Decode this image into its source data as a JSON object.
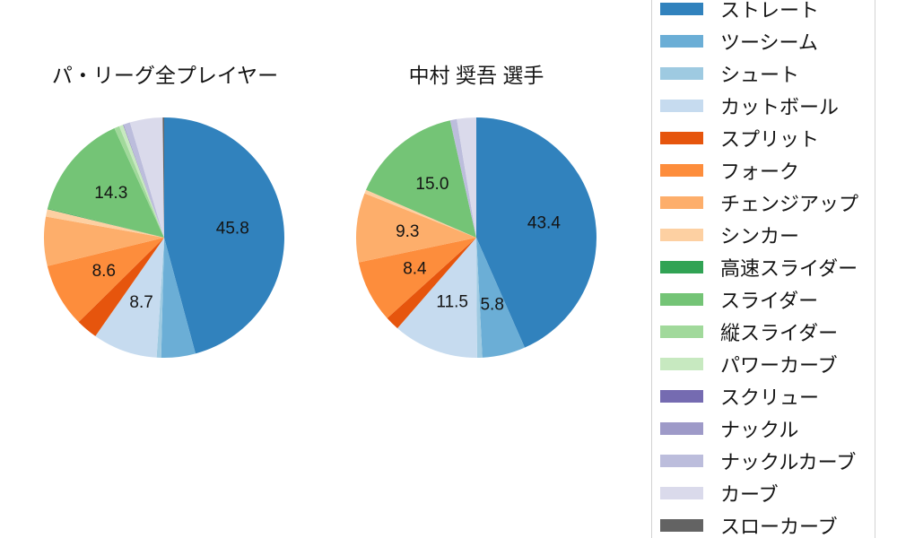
{
  "page": {
    "background_color": "#ffffff",
    "legend_border_color": "#d2d2d2",
    "text_color": "#141414"
  },
  "legend": {
    "items": [
      {
        "label": "ストレート",
        "color": "#3182bd"
      },
      {
        "label": "ツーシーム",
        "color": "#6baed6"
      },
      {
        "label": "シュート",
        "color": "#9ecae1"
      },
      {
        "label": "カットボール",
        "color": "#c6dbef"
      },
      {
        "label": "スプリット",
        "color": "#e6550d"
      },
      {
        "label": "フォーク",
        "color": "#fd8d3c"
      },
      {
        "label": "チェンジアップ",
        "color": "#fdae6b"
      },
      {
        "label": "シンカー",
        "color": "#fdd0a2"
      },
      {
        "label": "高速スライダー",
        "color": "#31a354"
      },
      {
        "label": "スライダー",
        "color": "#74c476"
      },
      {
        "label": "縦スライダー",
        "color": "#a1d99b"
      },
      {
        "label": "パワーカーブ",
        "color": "#c7e9c0"
      },
      {
        "label": "スクリュー",
        "color": "#756bb1"
      },
      {
        "label": "ナックル",
        "color": "#9e9ac8"
      },
      {
        "label": "ナックルカーブ",
        "color": "#bcbddc"
      },
      {
        "label": "カーブ",
        "color": "#dadaeb"
      },
      {
        "label": "スローカーブ",
        "color": "#636363"
      }
    ]
  },
  "chart_data": [
    {
      "type": "pie",
      "title": "パ・リーグ全プレイヤー",
      "unit": "percent",
      "start_angle": "top",
      "direction": "clockwise",
      "slices": [
        {
          "label": "ストレート",
          "value": 45.8,
          "text": "45.8"
        },
        {
          "label": "ツーシーム",
          "value": 4.6
        },
        {
          "label": "シュート",
          "value": 0.6
        },
        {
          "label": "カットボール",
          "value": 8.7,
          "text": "8.7"
        },
        {
          "label": "スプリット",
          "value": 2.9
        },
        {
          "label": "フォーク",
          "value": 8.6,
          "text": "8.6"
        },
        {
          "label": "チェンジアップ",
          "value": 6.6
        },
        {
          "label": "シンカー",
          "value": 1.0
        },
        {
          "label": "高速スライダー",
          "value": 0.1
        },
        {
          "label": "スライダー",
          "value": 14.3,
          "text": "14.3"
        },
        {
          "label": "縦スライダー",
          "value": 0.7
        },
        {
          "label": "パワーカーブ",
          "value": 0.55
        },
        {
          "label": "スクリュー",
          "value": 0.05
        },
        {
          "label": "ナックル",
          "value": 0.05
        },
        {
          "label": "ナックルカーブ",
          "value": 0.85
        },
        {
          "label": "カーブ",
          "value": 4.4
        },
        {
          "label": "スローカーブ",
          "value": 0.2
        }
      ]
    },
    {
      "type": "pie",
      "title": "中村 奨吾 選手",
      "unit": "percent",
      "start_angle": "top",
      "direction": "clockwise",
      "slices": [
        {
          "label": "ストレート",
          "value": 43.4,
          "text": "43.4"
        },
        {
          "label": "ツーシーム",
          "value": 5.8,
          "text": "5.8"
        },
        {
          "label": "シュート",
          "value": 0.7
        },
        {
          "label": "カットボール",
          "value": 11.5,
          "text": "11.5"
        },
        {
          "label": "スプリット",
          "value": 1.9
        },
        {
          "label": "フォーク",
          "value": 8.4,
          "text": "8.4"
        },
        {
          "label": "チェンジアップ",
          "value": 9.3,
          "text": "9.3"
        },
        {
          "label": "シンカー",
          "value": 0.5
        },
        {
          "label": "スライダー",
          "value": 15.0,
          "text": "15.0"
        },
        {
          "label": "ナックルカーブ",
          "value": 0.9
        },
        {
          "label": "カーブ",
          "value": 2.6
        }
      ]
    }
  ]
}
